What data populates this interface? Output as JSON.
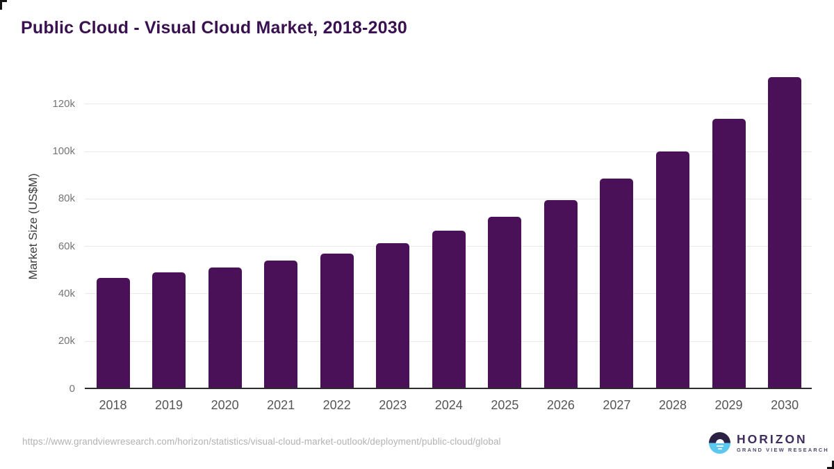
{
  "header": {
    "title": "Public Cloud - Visual Cloud Market, 2018-2030"
  },
  "footer": {
    "source_url": "https://www.grandviewresearch.com/horizon/statistics/visual-cloud-market-outlook/deployment/public-cloud/global",
    "logo_name": "HORIZON",
    "logo_subtitle": "GRAND VIEW RESEARCH"
  },
  "colors": {
    "bar": "#4a1158",
    "title": "#3a1150",
    "gridline": "#e8e8e8",
    "axis_line": "#2b2b2b",
    "ytick_text": "#757575",
    "xtick_text": "#555555",
    "url_text": "#b3b3b3",
    "logo_dark": "#2a2145",
    "logo_blue": "#5bc8f0"
  },
  "chart_data": {
    "type": "bar",
    "title": "Public Cloud - Visual Cloud Market, 2018-2030",
    "xlabel": "",
    "ylabel": "Market Size (US$M)",
    "categories": [
      "2018",
      "2019",
      "2020",
      "2021",
      "2022",
      "2023",
      "2024",
      "2025",
      "2026",
      "2027",
      "2028",
      "2029",
      "2030"
    ],
    "values": [
      46500,
      48800,
      51100,
      53900,
      56900,
      61200,
      66400,
      72300,
      79400,
      88600,
      99800,
      113500,
      131100
    ],
    "ytick_values": [
      0,
      20000,
      40000,
      60000,
      80000,
      100000,
      120000
    ],
    "ytick_labels": [
      "0",
      "20k",
      "40k",
      "60k",
      "80k",
      "100k",
      "120k"
    ],
    "ylim": [
      0,
      134000
    ],
    "grid": true,
    "legend_position": "none",
    "bar_color": "#4a1158"
  }
}
